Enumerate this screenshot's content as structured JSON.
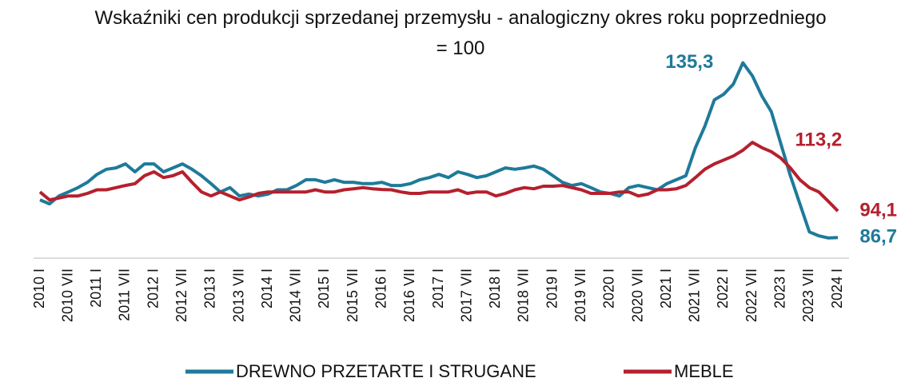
{
  "chart_data": {
    "type": "line",
    "title": "Wskaźniki cen produkcji sprzedanej przemysłu - analogiczny okres roku poprzedniego = 100",
    "categories": [
      "2010 I",
      null,
      null,
      "2010 VII",
      null,
      null,
      "2011 I",
      null,
      null,
      "2011 VII",
      null,
      null,
      "2012 I",
      null,
      null,
      "2012 VII",
      null,
      null,
      "2013 I",
      null,
      null,
      "2013 VII",
      null,
      null,
      "2014 I",
      null,
      null,
      "2014 VII",
      null,
      null,
      "2015 I",
      null,
      null,
      "2015 VII",
      null,
      null,
      "2016 I",
      null,
      null,
      "2016 VII",
      null,
      null,
      "2017 I",
      null,
      null,
      "2017 VII",
      null,
      null,
      "2018 I",
      null,
      null,
      "2018 VII",
      null,
      null,
      "2019 I",
      null,
      null,
      "2019 VII",
      null,
      null,
      "2020 I",
      null,
      null,
      "2020 VII",
      null,
      null,
      "2021 I",
      null,
      null,
      "2021 VII",
      null,
      null,
      "2022 I",
      null,
      null,
      "2022 VII",
      null,
      null,
      "2023 I",
      null,
      null,
      "2023 VII",
      null,
      null,
      "2024 I"
    ],
    "series": [
      {
        "name": "DREWNO PRZETARTE I STRUGANE",
        "color": "#1f7a99",
        "values": [
          97.2,
          96.1,
          98.3,
          99.4,
          100.6,
          102.1,
          104.3,
          105.7,
          106.1,
          107.2,
          105,
          107.2,
          107.2,
          105,
          106.1,
          107.2,
          105.7,
          103.9,
          101.7,
          99.4,
          100.6,
          98.3,
          98.8,
          98.3,
          98.8,
          100,
          100,
          101.2,
          102.8,
          102.8,
          102.1,
          102.8,
          102.1,
          102.1,
          101.7,
          101.7,
          102.1,
          101.2,
          101.2,
          101.7,
          102.8,
          103.4,
          104.3,
          103.4,
          105,
          104.3,
          103.4,
          103.9,
          105,
          106.1,
          105.7,
          106.1,
          106.6,
          105.7,
          103.9,
          102.1,
          101.2,
          101.7,
          100.6,
          99.4,
          99,
          98.3,
          100.6,
          101.2,
          100.6,
          100,
          101.7,
          102.8,
          103.9,
          111.7,
          117.7,
          125,
          126.6,
          129.4,
          135.3,
          131.7,
          126.1,
          121.7,
          112.8,
          103.9,
          96.1,
          88.3,
          87.2,
          86.6,
          86.7
        ]
      },
      {
        "name": "MEBLE",
        "color": "#b5202e",
        "values": [
          99.4,
          97.2,
          97.7,
          98.3,
          98.3,
          99,
          100,
          100,
          100.6,
          101.2,
          101.7,
          103.9,
          105,
          103.4,
          103.9,
          105,
          102.1,
          99.4,
          98.3,
          99.4,
          98.3,
          97.2,
          98,
          99,
          99.4,
          99.4,
          99.4,
          99.4,
          99.4,
          100,
          99.4,
          99.4,
          100,
          100.3,
          100.6,
          100.3,
          100.1,
          100,
          99.4,
          99,
          99,
          99.4,
          99.4,
          99.4,
          100,
          99,
          99.4,
          99.4,
          98.3,
          99,
          100,
          100.6,
          100.3,
          101,
          101,
          101.2,
          100.6,
          100,
          99,
          99,
          99,
          99.4,
          99.4,
          98.3,
          98.8,
          100,
          100,
          100.3,
          101.2,
          103.4,
          105.7,
          107.2,
          108.3,
          109.4,
          111,
          113.2,
          111.7,
          110.6,
          108.8,
          106.1,
          102.8,
          100.6,
          99.4,
          96.8,
          94.1
        ]
      }
    ],
    "annotations": [
      {
        "label": "135,3",
        "value": 135.3,
        "series": 0
      },
      {
        "label": "113,2",
        "value": 113.2,
        "series": 1
      },
      {
        "label": "94,1",
        "value": 94.1,
        "series": 1
      },
      {
        "label": "86,7",
        "value": 86.7,
        "series": 0
      }
    ],
    "ylim": [
      81,
      138
    ]
  }
}
